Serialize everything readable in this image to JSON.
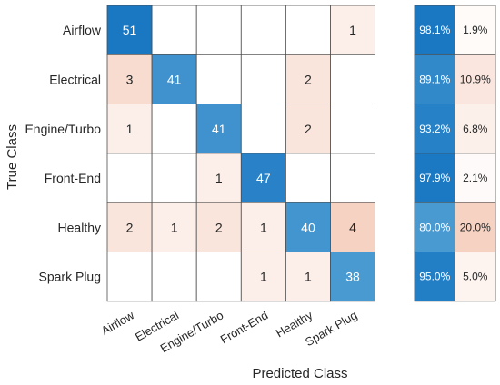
{
  "chart_data": {
    "type": "heatmap",
    "title": "",
    "xlabel": "Predicted Class",
    "ylabel": "True Class",
    "classes": [
      "Airflow",
      "Electrical",
      "Engine/Turbo",
      "Front-End",
      "Healthy",
      "Spark Plug"
    ],
    "matrix": [
      [
        51,
        0,
        0,
        0,
        0,
        1
      ],
      [
        3,
        41,
        0,
        0,
        2,
        0
      ],
      [
        1,
        0,
        41,
        0,
        2,
        0
      ],
      [
        0,
        0,
        1,
        47,
        0,
        0
      ],
      [
        2,
        1,
        2,
        1,
        40,
        4
      ],
      [
        0,
        0,
        0,
        1,
        1,
        38
      ]
    ],
    "row_summary": [
      [
        "98.1%",
        "1.9%"
      ],
      [
        "89.1%",
        "10.9%"
      ],
      [
        "93.2%",
        "6.8%"
      ],
      [
        "97.9%",
        "2.1%"
      ],
      [
        "80.0%",
        "20.0%"
      ],
      [
        "95.0%",
        "5.0%"
      ]
    ],
    "row_summary_values": [
      [
        98.1,
        1.9
      ],
      [
        89.1,
        10.9
      ],
      [
        93.2,
        6.8
      ],
      [
        97.9,
        2.1
      ],
      [
        80.0,
        20.0
      ],
      [
        95.0,
        5.0
      ]
    ],
    "colors": {
      "diagonal_high": "#1a78c2",
      "diagonal_low": "#4a9ad2",
      "offdiag_light": "#fcefe9",
      "offdiag_mid": "#f5d2c2",
      "grid": "#4d4d4d",
      "text_dark": "#262626",
      "text_light": "#ffffff"
    }
  }
}
